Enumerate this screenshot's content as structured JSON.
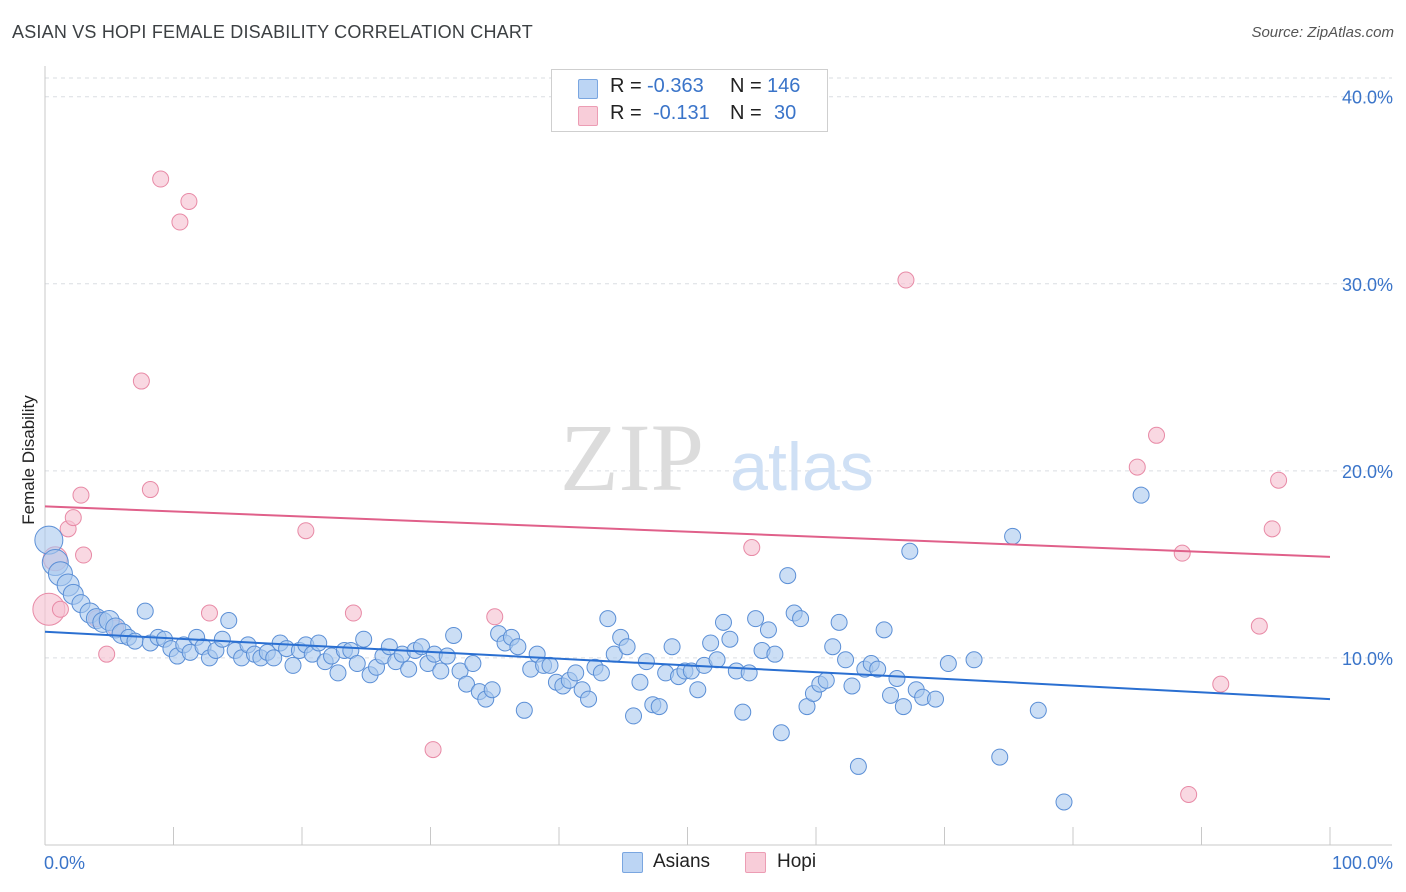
{
  "header": {
    "title": "ASIAN VS HOPI FEMALE DISABILITY CORRELATION CHART",
    "source": "Source: ZipAtlas.com"
  },
  "watermark": {
    "zip": "ZIP",
    "atlas": "atlas"
  },
  "legend": {
    "rows": [
      {
        "r_label": "R =",
        "r_value": "-0.363",
        "n_label": "N =",
        "n_value": "146",
        "color": "#8ab4e8"
      },
      {
        "r_label": "R =",
        "r_value": "-0.131",
        "n_label": "N =",
        "n_value": "30",
        "color": "#f2a7bd"
      }
    ]
  },
  "bottom_legend": {
    "asians": "Asians",
    "hopi": "Hopi"
  },
  "colors": {
    "asian_fill": "#a9c8ef",
    "asian_stroke": "#5b8fd6",
    "asian_line": "#2a6fd1",
    "hopi_fill": "#f6c3d2",
    "hopi_stroke": "#e88aa6",
    "hopi_line": "#e0608a",
    "tick_text": "#3a74c9"
  },
  "chart_data": {
    "type": "scatter",
    "title": "ASIAN VS HOPI FEMALE DISABILITY CORRELATION CHART",
    "xlabel": "",
    "ylabel": "Female Disability",
    "xlim": [
      0,
      100
    ],
    "ylim": [
      0,
      41
    ],
    "x_tick_labels": [
      "0.0%",
      "100.0%"
    ],
    "y_ticks": [
      10,
      20,
      30,
      40
    ],
    "y_tick_labels": [
      "10.0%",
      "20.0%",
      "30.0%",
      "40.0%"
    ],
    "grid": true,
    "series": [
      {
        "name": "Asians",
        "trend": {
          "x": [
            0,
            100
          ],
          "y": [
            11.4,
            7.8
          ]
        },
        "points": [
          [
            0.3,
            16.3
          ],
          [
            0.8,
            15.1
          ],
          [
            1.2,
            14.5
          ],
          [
            1.8,
            13.9
          ],
          [
            2.2,
            13.4
          ],
          [
            2.8,
            12.9
          ],
          [
            3.5,
            12.4
          ],
          [
            4.0,
            12.1
          ],
          [
            4.5,
            11.9
          ],
          [
            5.0,
            12.0
          ],
          [
            5.5,
            11.6
          ],
          [
            6.0,
            11.3
          ],
          [
            6.5,
            11.1
          ],
          [
            7.0,
            10.9
          ],
          [
            7.8,
            12.5
          ],
          [
            8.2,
            10.8
          ],
          [
            8.8,
            11.1
          ],
          [
            9.3,
            11.0
          ],
          [
            9.8,
            10.5
          ],
          [
            10.3,
            10.1
          ],
          [
            10.8,
            10.7
          ],
          [
            11.3,
            10.3
          ],
          [
            11.8,
            11.1
          ],
          [
            12.3,
            10.6
          ],
          [
            12.8,
            10.0
          ],
          [
            13.3,
            10.4
          ],
          [
            13.8,
            11.0
          ],
          [
            14.3,
            12.0
          ],
          [
            14.8,
            10.4
          ],
          [
            15.3,
            10.0
          ],
          [
            15.8,
            10.7
          ],
          [
            16.3,
            10.2
          ],
          [
            16.8,
            10.0
          ],
          [
            17.3,
            10.3
          ],
          [
            17.8,
            10.0
          ],
          [
            18.3,
            10.8
          ],
          [
            18.8,
            10.5
          ],
          [
            19.3,
            9.6
          ],
          [
            19.8,
            10.4
          ],
          [
            20.3,
            10.7
          ],
          [
            20.8,
            10.2
          ],
          [
            21.3,
            10.8
          ],
          [
            21.8,
            9.8
          ],
          [
            22.3,
            10.1
          ],
          [
            22.8,
            9.2
          ],
          [
            23.3,
            10.4
          ],
          [
            23.8,
            10.4
          ],
          [
            24.3,
            9.7
          ],
          [
            24.8,
            11.0
          ],
          [
            25.3,
            9.1
          ],
          [
            25.8,
            9.5
          ],
          [
            26.3,
            10.1
          ],
          [
            26.8,
            10.6
          ],
          [
            27.3,
            9.8
          ],
          [
            27.8,
            10.2
          ],
          [
            28.3,
            9.4
          ],
          [
            28.8,
            10.4
          ],
          [
            29.3,
            10.6
          ],
          [
            29.8,
            9.7
          ],
          [
            30.3,
            10.2
          ],
          [
            30.8,
            9.3
          ],
          [
            31.3,
            10.1
          ],
          [
            31.8,
            11.2
          ],
          [
            32.3,
            9.3
          ],
          [
            32.8,
            8.6
          ],
          [
            33.3,
            9.7
          ],
          [
            33.8,
            8.2
          ],
          [
            34.3,
            7.8
          ],
          [
            34.8,
            8.3
          ],
          [
            35.3,
            11.3
          ],
          [
            35.8,
            10.8
          ],
          [
            36.3,
            11.1
          ],
          [
            36.8,
            10.6
          ],
          [
            37.3,
            7.2
          ],
          [
            37.8,
            9.4
          ],
          [
            38.3,
            10.2
          ],
          [
            38.8,
            9.6
          ],
          [
            39.3,
            9.6
          ],
          [
            39.8,
            8.7
          ],
          [
            40.3,
            8.5
          ],
          [
            40.8,
            8.8
          ],
          [
            41.3,
            9.2
          ],
          [
            41.8,
            8.3
          ],
          [
            42.3,
            7.8
          ],
          [
            42.8,
            9.5
          ],
          [
            43.3,
            9.2
          ],
          [
            43.8,
            12.1
          ],
          [
            44.3,
            10.2
          ],
          [
            44.8,
            11.1
          ],
          [
            45.3,
            10.6
          ],
          [
            45.8,
            6.9
          ],
          [
            46.3,
            8.7
          ],
          [
            46.8,
            9.8
          ],
          [
            47.3,
            7.5
          ],
          [
            47.8,
            7.4
          ],
          [
            48.3,
            9.2
          ],
          [
            48.8,
            10.6
          ],
          [
            49.3,
            9.0
          ],
          [
            49.8,
            9.3
          ],
          [
            50.3,
            9.3
          ],
          [
            50.8,
            8.3
          ],
          [
            51.3,
            9.6
          ],
          [
            51.8,
            10.8
          ],
          [
            52.3,
            9.9
          ],
          [
            52.8,
            11.9
          ],
          [
            53.3,
            11.0
          ],
          [
            53.8,
            9.3
          ],
          [
            54.3,
            7.1
          ],
          [
            54.8,
            9.2
          ],
          [
            55.3,
            12.1
          ],
          [
            55.8,
            10.4
          ],
          [
            56.3,
            11.5
          ],
          [
            56.8,
            10.2
          ],
          [
            57.3,
            6.0
          ],
          [
            57.8,
            14.4
          ],
          [
            58.3,
            12.4
          ],
          [
            58.8,
            12.1
          ],
          [
            59.3,
            7.4
          ],
          [
            59.8,
            8.1
          ],
          [
            60.3,
            8.6
          ],
          [
            60.8,
            8.8
          ],
          [
            61.3,
            10.6
          ],
          [
            61.8,
            11.9
          ],
          [
            62.3,
            9.9
          ],
          [
            62.8,
            8.5
          ],
          [
            63.3,
            4.2
          ],
          [
            63.8,
            9.4
          ],
          [
            64.3,
            9.7
          ],
          [
            64.8,
            9.4
          ],
          [
            65.3,
            11.5
          ],
          [
            65.8,
            8.0
          ],
          [
            66.3,
            8.9
          ],
          [
            66.8,
            7.4
          ],
          [
            67.3,
            15.7
          ],
          [
            67.8,
            8.3
          ],
          [
            68.3,
            7.9
          ],
          [
            69.3,
            7.8
          ],
          [
            70.3,
            9.7
          ],
          [
            72.3,
            9.9
          ],
          [
            74.3,
            4.7
          ],
          [
            75.3,
            16.5
          ],
          [
            77.3,
            7.2
          ],
          [
            79.3,
            2.3
          ],
          [
            85.3,
            18.7
          ]
        ]
      },
      {
        "name": "Hopi",
        "trend": {
          "x": [
            0,
            100
          ],
          "y": [
            18.1,
            15.4
          ]
        },
        "points": [
          [
            0.3,
            12.6
          ],
          [
            0.8,
            15.3
          ],
          [
            1.2,
            12.6
          ],
          [
            1.8,
            16.9
          ],
          [
            2.2,
            17.5
          ],
          [
            2.8,
            18.7
          ],
          [
            3.0,
            15.5
          ],
          [
            4.0,
            12.1
          ],
          [
            4.8,
            10.2
          ],
          [
            5.5,
            11.6
          ],
          [
            7.5,
            24.8
          ],
          [
            8.2,
            19.0
          ],
          [
            9.0,
            35.6
          ],
          [
            10.5,
            33.3
          ],
          [
            11.2,
            34.4
          ],
          [
            12.8,
            12.4
          ],
          [
            20.3,
            16.8
          ],
          [
            24.0,
            12.4
          ],
          [
            30.2,
            5.1
          ],
          [
            35.0,
            12.2
          ],
          [
            55.0,
            15.9
          ],
          [
            67.0,
            30.2
          ],
          [
            85.0,
            20.2
          ],
          [
            86.5,
            21.9
          ],
          [
            88.5,
            15.6
          ],
          [
            89.0,
            2.7
          ],
          [
            91.5,
            8.6
          ],
          [
            94.5,
            11.7
          ],
          [
            95.5,
            16.9
          ],
          [
            96.0,
            19.5
          ]
        ]
      }
    ]
  }
}
